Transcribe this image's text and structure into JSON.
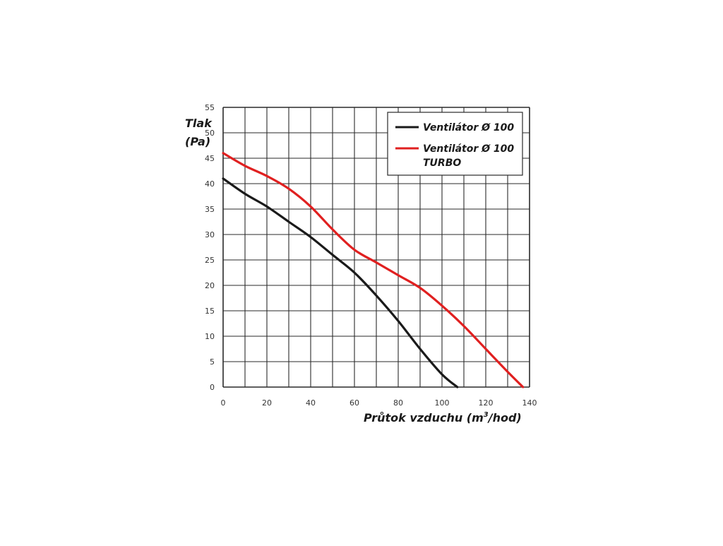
{
  "chart_data": {
    "type": "line",
    "ylabel_line1": "Tlak",
    "ylabel_line2": "(Pa)",
    "xlabel_main": "Průtok vzduchu (m",
    "xlabel_sup": "3",
    "xlabel_end": "/hod)",
    "xlim": [
      0,
      140
    ],
    "ylim": [
      0,
      55
    ],
    "x_ticks": [
      0,
      20,
      40,
      60,
      80,
      100,
      120,
      140
    ],
    "y_ticks": [
      0,
      5,
      10,
      15,
      20,
      25,
      30,
      35,
      40,
      45,
      50,
      55
    ],
    "grid": true,
    "x_grid_step": 10,
    "y_grid_step": 5,
    "legend_position": "top-right",
    "series": [
      {
        "name": "Ventilátor Ø 100",
        "name_lines": [
          "Ventilátor Ø 100"
        ],
        "color": "#1a1a1a",
        "points": [
          [
            0,
            41
          ],
          [
            10,
            38
          ],
          [
            20,
            35.5
          ],
          [
            30,
            32.5
          ],
          [
            40,
            29.5
          ],
          [
            50,
            26
          ],
          [
            60,
            22.5
          ],
          [
            70,
            18
          ],
          [
            80,
            13
          ],
          [
            90,
            7.5
          ],
          [
            100,
            2.5
          ],
          [
            107,
            0
          ]
        ]
      },
      {
        "name": "Ventilátor Ø 100 TURBO",
        "name_lines": [
          "Ventilátor Ø 100",
          "TURBO"
        ],
        "color": "#e02020",
        "points": [
          [
            0,
            46
          ],
          [
            10,
            43.5
          ],
          [
            20,
            41.5
          ],
          [
            30,
            39
          ],
          [
            40,
            35.5
          ],
          [
            50,
            31
          ],
          [
            60,
            27
          ],
          [
            70,
            24.5
          ],
          [
            80,
            22
          ],
          [
            90,
            19.5
          ],
          [
            100,
            16
          ],
          [
            110,
            12
          ],
          [
            120,
            7.5
          ],
          [
            130,
            3
          ],
          [
            137,
            0
          ]
        ]
      }
    ]
  }
}
